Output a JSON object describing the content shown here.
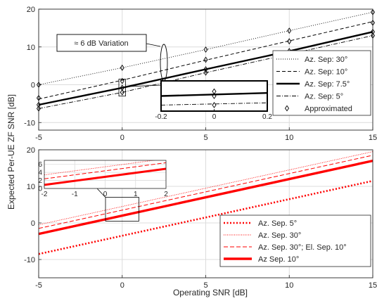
{
  "figure": {
    "ylabel": "Expected Per-UE ZF SNR [dB]",
    "xlabel": "Operating SNR [dB]"
  },
  "chart_data": [
    {
      "type": "line",
      "xlim": [
        -5,
        15
      ],
      "ylim": [
        -12,
        20
      ],
      "x_ticks": [
        -5,
        0,
        5,
        10,
        15
      ],
      "y_ticks": [
        -10,
        0,
        10,
        20
      ],
      "grid": true,
      "legend_position": "bottom-right",
      "annotation": "≈ 6 dB Variation",
      "x": [
        -5,
        0,
        5,
        10,
        15
      ],
      "series": [
        {
          "name": "Az. Sep: 30°",
          "style": "dotted",
          "values": [
            0.0,
            4.5,
            9.3,
            14.3,
            19.2
          ]
        },
        {
          "name": "Az. Sep: 10°",
          "style": "dashed",
          "values": [
            -3.8,
            1.2,
            6.5,
            11.6,
            16.7
          ]
        },
        {
          "name": "Az. Sep: 7.5°",
          "style": "solid-thick",
          "values": [
            -5.3,
            -0.8,
            4.1,
            8.9,
            14.0
          ]
        },
        {
          "name": "Az. Sep: 5°",
          "style": "dashdot",
          "values": [
            -6.3,
            -2.0,
            3.2,
            8.1,
            13.0
          ]
        },
        {
          "name": "Approximated",
          "style": "diamond-markers",
          "values": [
            -3.5,
            1.0,
            6.6,
            11.5,
            16.4
          ]
        }
      ],
      "markers_all": [
        [
          -5,
          0.0
        ],
        [
          0,
          4.5
        ],
        [
          5,
          9.3
        ],
        [
          10,
          14.3
        ],
        [
          15,
          19.2
        ],
        [
          -5,
          -3.5
        ],
        [
          0,
          1.0
        ],
        [
          5,
          6.6
        ],
        [
          10,
          11.5
        ],
        [
          15,
          16.4
        ],
        [
          -5,
          -5.3
        ],
        [
          0,
          -0.8
        ],
        [
          5,
          4.1
        ],
        [
          10,
          8.9
        ],
        [
          15,
          14.0
        ],
        [
          -5,
          -6.3
        ],
        [
          0,
          -2.0
        ],
        [
          5,
          3.2
        ],
        [
          10,
          8.1
        ],
        [
          15,
          13.0
        ]
      ],
      "inset": {
        "xlim": [
          -0.2,
          0.2
        ],
        "ylim": [
          -3,
          1
        ],
        "x_ticks": [
          -0.2,
          0,
          0.2
        ],
        "x": [
          -0.2,
          0.2
        ],
        "series": [
          {
            "style": "solid-thick",
            "values": [
              -1.0,
              -0.6
            ]
          },
          {
            "style": "dashdot",
            "values": [
              -2.2,
              -1.9
            ]
          }
        ],
        "markers": [
          [
            0,
            -0.4
          ],
          [
            0,
            -1.0
          ],
          [
            0,
            -2.2
          ]
        ]
      }
    },
    {
      "type": "line",
      "xlim": [
        -5,
        15
      ],
      "ylim": [
        -15,
        20
      ],
      "x_ticks": [
        -5,
        0,
        5,
        10,
        15
      ],
      "y_ticks": [
        -10,
        0,
        10,
        20
      ],
      "grid": true,
      "legend_position": "bottom-right",
      "x": [
        -5,
        15
      ],
      "series": [
        {
          "name": "Az. Sep. 5°",
          "style": "dotted-thick",
          "values": [
            -8.5,
            11.5
          ]
        },
        {
          "name": "Az. Sep. 30°",
          "style": "dotted",
          "values": [
            -0.5,
            19.5
          ]
        },
        {
          "name": "Az. Sep. 30°; El. Sep. 10°",
          "style": "dashed",
          "values": [
            -1.5,
            18.5
          ]
        },
        {
          "name": "Az Sep. 10°",
          "style": "solid-thick",
          "values": [
            -3.0,
            17.0
          ]
        }
      ],
      "inset": {
        "xlim": [
          -2,
          2
        ],
        "ylim": [
          0,
          7
        ],
        "x_ticks": [
          -2,
          -1,
          0,
          1,
          2
        ],
        "y_ticks": [
          0,
          2,
          4,
          6
        ],
        "x": [
          -2,
          2
        ],
        "series": [
          {
            "style": "solid-thick",
            "values": [
              0.9,
              4.9
            ]
          },
          {
            "style": "dashed",
            "values": [
              2.4,
              6.4
            ]
          },
          {
            "style": "dotted",
            "values": [
              3.4,
              7.4
            ]
          }
        ]
      }
    }
  ]
}
